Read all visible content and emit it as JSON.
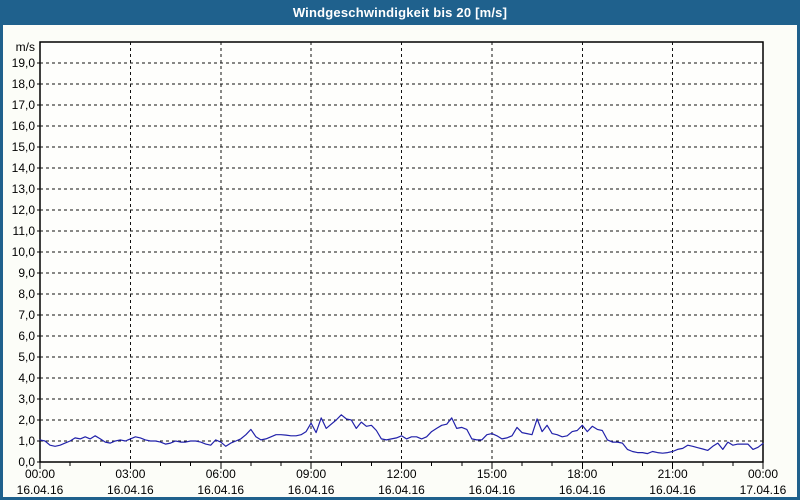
{
  "window": {
    "title": "Windgeschwindigkeit bis 20 [m/s]"
  },
  "colors": {
    "titlebar": "#1f618d",
    "window_border": "#1f618d",
    "content_background": "#fcfdf8",
    "plot_background": "#fefefc",
    "plot_border": "#000000",
    "grid": "#111111",
    "line": "#2222aa",
    "text": "#000000"
  },
  "chart_data": {
    "type": "line",
    "title": "Windgeschwindigkeit bis 20 [m/s]",
    "ylabel": "m/s",
    "unit_label": "m/s",
    "ylim": [
      0,
      20
    ],
    "ytick_step": 1,
    "ytick_labels": [
      "0,0",
      "1,0",
      "2,0",
      "3,0",
      "4,0",
      "5,0",
      "6,0",
      "7,0",
      "8,0",
      "9,0",
      "10,0",
      "11,0",
      "12,0",
      "13,0",
      "14,0",
      "15,0",
      "16,0",
      "17,0",
      "18,0",
      "19,0"
    ],
    "grid": "dashed",
    "legend": "none",
    "x_hours_total": 24,
    "x_minor_tick_every_hours": 1,
    "x_major_ticks": [
      {
        "hour": 0,
        "time": "00:00",
        "date": "16.04.16"
      },
      {
        "hour": 3,
        "time": "03:00",
        "date": "16.04.16"
      },
      {
        "hour": 6,
        "time": "06:00",
        "date": "16.04.16"
      },
      {
        "hour": 9,
        "time": "09:00",
        "date": "16.04.16"
      },
      {
        "hour": 12,
        "time": "12:00",
        "date": "16.04.16"
      },
      {
        "hour": 15,
        "time": "15:00",
        "date": "16.04.16"
      },
      {
        "hour": 18,
        "time": "18:00",
        "date": "16.04.16"
      },
      {
        "hour": 21,
        "time": "21:00",
        "date": "16.04.16"
      },
      {
        "hour": 24,
        "time": "00:00",
        "date": "17.04.16"
      }
    ],
    "series": [
      {
        "name": "Windgeschwindigkeit",
        "color": "#2222aa",
        "sample_minutes": 10,
        "values": [
          1.05,
          1.0,
          0.8,
          0.75,
          0.8,
          0.9,
          1.0,
          1.15,
          1.1,
          1.2,
          1.1,
          1.25,
          1.1,
          0.95,
          0.9,
          1.0,
          1.05,
          1.0,
          1.1,
          1.2,
          1.15,
          1.05,
          1.0,
          1.0,
          0.95,
          0.85,
          0.9,
          1.0,
          0.95,
          0.95,
          1.0,
          1.0,
          0.95,
          0.85,
          0.8,
          1.05,
          0.95,
          0.75,
          0.9,
          1.0,
          1.1,
          1.3,
          1.55,
          1.2,
          1.05,
          1.1,
          1.2,
          1.3,
          1.3,
          1.28,
          1.25,
          1.25,
          1.3,
          1.45,
          1.85,
          1.4,
          2.1,
          1.6,
          1.8,
          2.0,
          2.25,
          2.05,
          2.0,
          1.6,
          1.9,
          1.7,
          1.75,
          1.5,
          1.1,
          1.05,
          1.1,
          1.15,
          1.25,
          1.1,
          1.2,
          1.2,
          1.1,
          1.2,
          1.45,
          1.6,
          1.75,
          1.8,
          2.1,
          1.6,
          1.65,
          1.55,
          1.1,
          1.05,
          1.05,
          1.3,
          1.35,
          1.25,
          1.1,
          1.15,
          1.25,
          1.65,
          1.4,
          1.35,
          1.3,
          2.05,
          1.45,
          1.75,
          1.35,
          1.3,
          1.2,
          1.25,
          1.45,
          1.5,
          1.75,
          1.45,
          1.7,
          1.55,
          1.5,
          1.05,
          0.95,
          0.95,
          0.9,
          0.6,
          0.5,
          0.45,
          0.45,
          0.4,
          0.5,
          0.45,
          0.42,
          0.45,
          0.5,
          0.6,
          0.65,
          0.8,
          0.75,
          0.68,
          0.62,
          0.55,
          0.75,
          0.9,
          0.6,
          0.95,
          0.8,
          0.85,
          0.85,
          0.85,
          0.6,
          0.7,
          0.88
        ]
      }
    ]
  }
}
